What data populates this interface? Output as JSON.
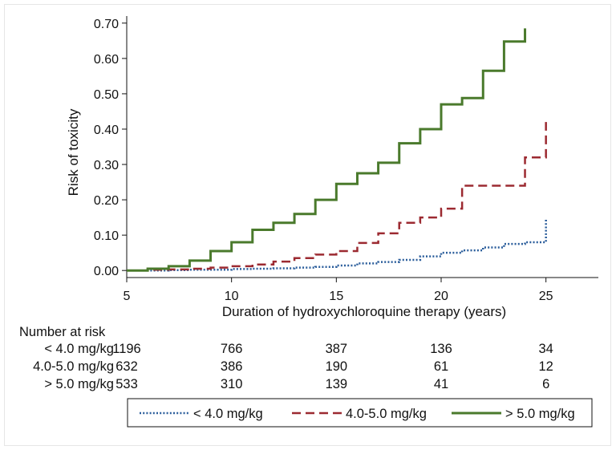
{
  "chart_data": {
    "type": "line",
    "step": true,
    "title": "",
    "xlabel": "Duration of hydroxychloroquine therapy (years)",
    "ylabel": "Risk of toxicity",
    "xlim": [
      5,
      27.5
    ],
    "ylim": [
      -0.02,
      0.72
    ],
    "xticks": [
      5,
      10,
      15,
      20,
      25
    ],
    "xtick_labels": [
      "5",
      "10",
      "15",
      "20",
      "25"
    ],
    "yticks": [
      0,
      0.1,
      0.2,
      0.3,
      0.4,
      0.5,
      0.6,
      0.7
    ],
    "ytick_labels": [
      "0.00",
      "0.10",
      "0.20",
      "0.30",
      "0.40",
      "0.50",
      "0.60",
      "0.70"
    ],
    "series": [
      {
        "name": "< 4.0 mg/kg",
        "color": "#2a5d9b",
        "dash": "dotted",
        "x": [
          5,
          6,
          7,
          8,
          9,
          10,
          11,
          12,
          13,
          14,
          15,
          16,
          17,
          18,
          19,
          20,
          21,
          22,
          23,
          24,
          25,
          25
        ],
        "y": [
          0.0,
          0.0,
          0.001,
          0.002,
          0.002,
          0.004,
          0.005,
          0.006,
          0.008,
          0.01,
          0.014,
          0.02,
          0.024,
          0.03,
          0.04,
          0.05,
          0.057,
          0.065,
          0.075,
          0.08,
          0.1,
          0.145
        ]
      },
      {
        "name": "4.0-5.0 mg/kg",
        "color": "#9c2a31",
        "dash": "dashed",
        "x": [
          5,
          6,
          7,
          8,
          9,
          10,
          11,
          12,
          13,
          14,
          15,
          16,
          17,
          18,
          19,
          20,
          21,
          22,
          23,
          24,
          25,
          25
        ],
        "y": [
          0.0,
          0.002,
          0.003,
          0.005,
          0.008,
          0.012,
          0.017,
          0.025,
          0.035,
          0.045,
          0.055,
          0.078,
          0.105,
          0.135,
          0.15,
          0.175,
          0.24,
          0.24,
          0.24,
          0.32,
          0.365,
          0.42
        ]
      },
      {
        "name": "> 5.0 mg/kg",
        "color": "#4a7a2c",
        "dash": "solid",
        "x": [
          5,
          6,
          7,
          8,
          9,
          10,
          11,
          12,
          13,
          14,
          15,
          16,
          17,
          18,
          19,
          20,
          21,
          22,
          23,
          24,
          24
        ],
        "y": [
          0.0,
          0.005,
          0.012,
          0.028,
          0.055,
          0.08,
          0.115,
          0.135,
          0.16,
          0.2,
          0.245,
          0.275,
          0.305,
          0.36,
          0.4,
          0.47,
          0.488,
          0.565,
          0.648,
          0.648,
          0.685
        ]
      }
    ],
    "legend": [
      "< 4.0 mg/kg",
      "4.0-5.0 mg/kg",
      "> 5.0 mg/kg"
    ],
    "legend_position": "bottom",
    "risk_table": {
      "heading": "Number at risk",
      "rows": [
        {
          "label": "< 4.0 mg/kg",
          "values": [
            "1196",
            "766",
            "387",
            "136",
            "34"
          ]
        },
        {
          "label": "4.0-5.0 mg/kg",
          "values": [
            "632",
            "386",
            "190",
            "61",
            "12"
          ]
        },
        {
          "label": "> 5.0 mg/kg",
          "values": [
            "533",
            "310",
            "139",
            "41",
            "6"
          ]
        }
      ]
    }
  }
}
